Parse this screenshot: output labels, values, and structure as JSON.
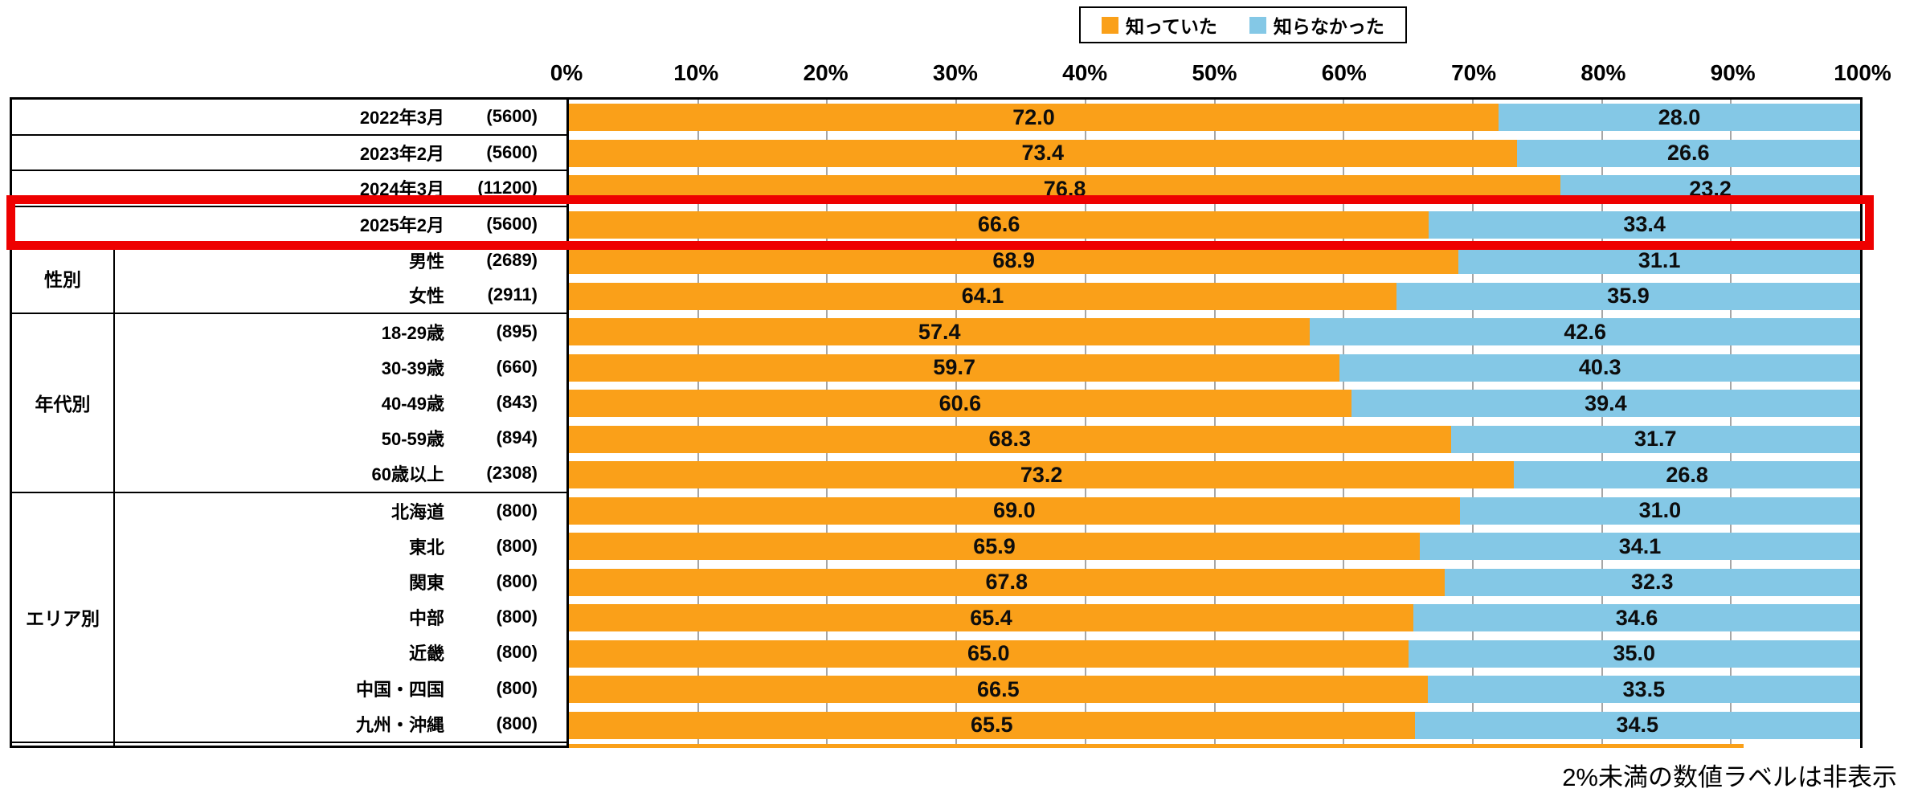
{
  "legend": {
    "items": [
      {
        "id": "knew",
        "label": "知っていた",
        "color": "#FAA019"
      },
      {
        "id": "didnt-know",
        "label": "知らなかった",
        "color": "#84C8E6"
      }
    ]
  },
  "axis": {
    "ticks": [
      "0%",
      "10%",
      "20%",
      "30%",
      "40%",
      "50%",
      "60%",
      "70%",
      "80%",
      "90%",
      "100%"
    ]
  },
  "footnote": "2%未満の数値ラベルは非表示",
  "highlight": {
    "row_index": 3,
    "color": "#EE0000"
  },
  "chart_data": {
    "type": "bar",
    "stacked": true,
    "orientation": "horizontal",
    "series_names": [
      "知っていた",
      "知らなかった"
    ],
    "series_colors": [
      "#FAA019",
      "#84C8E6"
    ],
    "xlim": [
      0,
      100
    ],
    "grid": true,
    "value_label_min_pct": 2,
    "sections": [
      {
        "group_label": "",
        "rows": [
          0,
          1,
          2,
          3
        ],
        "ruled": true
      },
      {
        "group_label": "性別",
        "rows": [
          4,
          5
        ]
      },
      {
        "group_label": "年代別",
        "rows": [
          6,
          7,
          8,
          9,
          10
        ]
      },
      {
        "group_label": "エリア別",
        "rows": [
          11,
          12,
          13,
          14,
          15,
          16,
          17
        ]
      }
    ],
    "rows": [
      {
        "label": "2022年3月",
        "n": "(5600)",
        "values": [
          72.0,
          28.0
        ]
      },
      {
        "label": "2023年2月",
        "n": "(5600)",
        "values": [
          73.4,
          26.6
        ]
      },
      {
        "label": "2024年3月",
        "n": "(11200)",
        "values": [
          76.8,
          23.2
        ]
      },
      {
        "label": "2025年2月",
        "n": "(5600)",
        "values": [
          66.6,
          33.4
        ],
        "highlighted": true
      },
      {
        "label": "男性",
        "n": "(2689)",
        "values": [
          68.9,
          31.1
        ]
      },
      {
        "label": "女性",
        "n": "(2911)",
        "values": [
          64.1,
          35.9
        ]
      },
      {
        "label": "18-29歳",
        "n": "(895)",
        "values": [
          57.4,
          42.6
        ]
      },
      {
        "label": "30-39歳",
        "n": "(660)",
        "values": [
          59.7,
          40.3
        ]
      },
      {
        "label": "40-49歳",
        "n": "(843)",
        "values": [
          60.6,
          39.4
        ]
      },
      {
        "label": "50-59歳",
        "n": "(894)",
        "values": [
          68.3,
          31.7
        ]
      },
      {
        "label": "60歳以上",
        "n": "(2308)",
        "values": [
          73.2,
          26.8
        ]
      },
      {
        "label": "北海道",
        "n": "(800)",
        "values": [
          69.0,
          31.0
        ]
      },
      {
        "label": "東北",
        "n": "(800)",
        "values": [
          65.9,
          34.1
        ]
      },
      {
        "label": "関東",
        "n": "(800)",
        "values": [
          67.8,
          32.3
        ]
      },
      {
        "label": "中部",
        "n": "(800)",
        "values": [
          65.4,
          34.6
        ]
      },
      {
        "label": "近畿",
        "n": "(800)",
        "values": [
          65.0,
          35.0
        ]
      },
      {
        "label": "中国・四国",
        "n": "(800)",
        "values": [
          66.5,
          33.5
        ]
      },
      {
        "label": "九州・沖縄",
        "n": "(800)",
        "values": [
          65.5,
          34.5
        ]
      }
    ]
  }
}
